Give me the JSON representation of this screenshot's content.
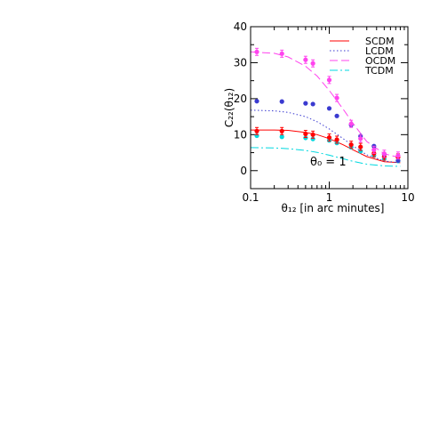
{
  "chart_data": {
    "type": "line",
    "x_scale": "log",
    "xlim": [
      0.1,
      10
    ],
    "ylim": [
      -5,
      40
    ],
    "x_ticks": [
      {
        "value": 0.1,
        "label": "0.1"
      },
      {
        "value": 1,
        "label": "1"
      },
      {
        "value": 10,
        "label": "10"
      }
    ],
    "y_ticks": [
      {
        "value": 0,
        "label": "0"
      },
      {
        "value": 10,
        "label": "10"
      },
      {
        "value": 20,
        "label": "20"
      },
      {
        "value": 30,
        "label": "30"
      },
      {
        "value": 40,
        "label": "40"
      }
    ],
    "xlabel": "θ₁₂ [in arc minutes]",
    "ylabel": "C₂₂(θ₁₂)",
    "annotation": "θ₀ = 1",
    "legend_position": "top-right",
    "series": [
      {
        "name": "SCDM",
        "color": "#ff0000",
        "dash": "solid",
        "curve": {
          "x": [
            0.1,
            0.2,
            0.3,
            0.5,
            0.7,
            1.0,
            1.5,
            2.0,
            3.0,
            5.0,
            7.0,
            8.0
          ],
          "y": [
            11.3,
            11.3,
            11.2,
            10.6,
            10.0,
            8.9,
            7.2,
            5.8,
            3.9,
            2.5,
            2.3,
            2.2
          ]
        },
        "points": {
          "x": [
            0.12,
            0.25,
            0.5,
            0.62,
            1.0,
            1.25,
            1.9,
            2.5,
            3.7,
            5.0,
            7.5
          ],
          "y": [
            11.0,
            11.0,
            10.2,
            10.0,
            9.2,
            8.6,
            7.2,
            6.6,
            4.8,
            3.9,
            3.7
          ]
        }
      },
      {
        "name": "LCDM",
        "color": "#3a3ad0",
        "dash": "dot",
        "curve": {
          "x": [
            0.1,
            0.2,
            0.3,
            0.5,
            0.7,
            1.0,
            1.5,
            2.0,
            3.0,
            5.0,
            7.0,
            8.0
          ],
          "y": [
            16.8,
            16.6,
            16.2,
            15.0,
            13.6,
            11.6,
            8.9,
            6.9,
            4.4,
            2.7,
            2.3,
            2.2
          ]
        },
        "points": {
          "x": [
            0.12,
            0.25,
            0.5,
            0.62,
            1.0,
            1.25,
            1.9,
            2.5,
            3.7,
            5.0,
            7.5
          ],
          "y": [
            19.3,
            19.2,
            18.7,
            18.5,
            17.3,
            15.2,
            12.7,
            9.6,
            6.8,
            4.6,
            2.8
          ]
        }
      },
      {
        "name": "OCDM",
        "color": "#ff44ee",
        "dash": "long-dash",
        "curve": {
          "x": [
            0.1,
            0.2,
            0.3,
            0.5,
            0.7,
            1.0,
            1.5,
            2.0,
            3.0,
            5.0,
            7.0,
            8.0
          ],
          "y": [
            33.0,
            32.6,
            31.6,
            29.0,
            26.3,
            22.3,
            17.1,
            13.2,
            8.1,
            4.7,
            3.9,
            3.8
          ]
        },
        "points": {
          "x": [
            0.12,
            0.25,
            0.5,
            0.62,
            1.0,
            1.25,
            1.9,
            2.5,
            3.7,
            5.0,
            7.5
          ],
          "y": [
            33.0,
            32.5,
            30.8,
            29.8,
            25.2,
            20.2,
            13.0,
            8.9,
            5.8,
            4.7,
            4.2
          ]
        }
      },
      {
        "name": "TCDM",
        "color": "#00d8e0",
        "dash": "dash-dot",
        "curve": {
          "x": [
            0.1,
            0.2,
            0.3,
            0.5,
            0.7,
            1.0,
            1.5,
            2.0,
            3.0,
            5.0,
            7.0,
            8.0
          ],
          "y": [
            6.4,
            6.3,
            6.1,
            5.6,
            5.1,
            4.3,
            3.3,
            2.6,
            1.8,
            1.3,
            1.2,
            1.2
          ]
        },
        "points": {
          "x": [
            0.12,
            0.25,
            0.5,
            0.62,
            1.0,
            1.25,
            1.9,
            2.5,
            3.7,
            5.0,
            7.5
          ],
          "y": [
            9.7,
            9.4,
            9.1,
            8.8,
            8.4,
            7.7,
            6.5,
            5.4,
            4.2,
            3.3,
            2.7
          ]
        }
      }
    ]
  }
}
